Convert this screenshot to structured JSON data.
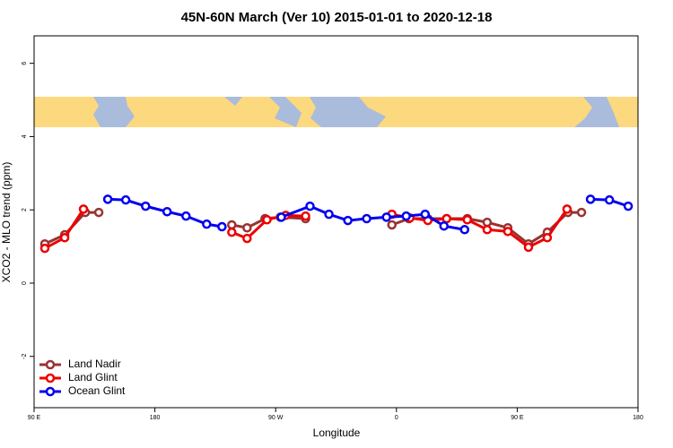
{
  "chart_data": {
    "type": "line",
    "title": "45N-60N March (Ver 10)   2015-01-01 to 2020-12-18",
    "x_label": "Longitude",
    "y_label": "XCO2 - MLO trend (ppm)",
    "xlim": [
      90,
      540
    ],
    "ylim": [
      -3.4,
      6.75
    ],
    "xticks": [
      {
        "value": 90,
        "label": "90 E"
      },
      180,
      {
        "value": 270,
        "label": "90 W"
      },
      {
        "value": 360,
        "label": "0"
      },
      {
        "value": 450,
        "label": "90 E"
      },
      {
        "value": 540,
        "label": "180"
      }
    ],
    "yticks": [
      -2,
      0,
      2,
      4,
      6
    ],
    "legend": "bottom-left",
    "series": [
      {
        "name": "Land Nadir",
        "color": "#993333",
        "x": [
          98.0,
          112.8,
          128.2,
          138.2,
          null,
          237.3,
          248.7,
          262.1,
          273.5,
          292.3,
          null,
          356.6,
          369.3,
          383.4,
          397.4,
          412.8,
          427.6,
          443.0,
          458.4,
          472.4,
          487.8,
          497.9
        ],
        "values": [
          1.07,
          1.32,
          1.93,
          1.93,
          null,
          1.59,
          1.51,
          1.76,
          1.8,
          1.76,
          null,
          1.59,
          1.76,
          1.76,
          1.76,
          1.76,
          1.66,
          1.51,
          1.07,
          1.39,
          1.93,
          1.93
        ]
      },
      {
        "name": "Land Glint",
        "color": "#ee0000",
        "x": [
          98.0,
          112.8,
          126.8,
          null,
          237.3,
          248.7,
          263.5,
          277.5,
          292.3,
          null,
          356.6,
          370.0,
          383.4,
          397.4,
          412.8,
          427.6,
          443.0,
          458.4,
          472.4,
          487.1
        ],
        "values": [
          0.95,
          1.24,
          2.02,
          null,
          1.39,
          1.22,
          1.73,
          1.85,
          1.83,
          null,
          1.88,
          1.78,
          1.71,
          1.76,
          1.73,
          1.46,
          1.41,
          0.98,
          1.24,
          2.02
        ]
      },
      {
        "name": "Ocean Glint",
        "color": "#0000ee",
        "x": [
          144.9,
          158.3,
          173.1,
          189.1,
          203.2,
          218.6,
          230.0,
          null,
          274.2,
          295.6,
          309.7,
          323.8,
          337.8,
          352.6,
          367.3,
          381.4,
          395.4,
          410.8,
          null,
          504.6,
          518.7,
          532.7
        ],
        "values": [
          2.29,
          2.27,
          2.1,
          1.95,
          1.83,
          1.61,
          1.54,
          null,
          1.8,
          2.1,
          1.88,
          1.71,
          1.76,
          1.8,
          1.83,
          1.88,
          1.56,
          1.46,
          null,
          2.29,
          2.27,
          2.1
        ]
      }
    ]
  }
}
